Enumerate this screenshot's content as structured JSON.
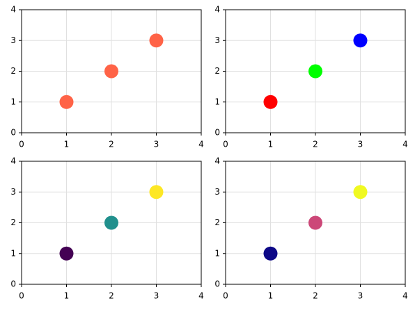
{
  "chart_data": [
    {
      "type": "scatter",
      "x": [
        1,
        2,
        3
      ],
      "values": [
        1,
        2,
        3
      ],
      "colors": [
        "#ff6347",
        "#ff6347",
        "#ff6347"
      ],
      "xlim": [
        0,
        4
      ],
      "ylim": [
        0,
        4
      ],
      "xticks": [
        0,
        1,
        2,
        3,
        4
      ],
      "yticks": [
        0,
        1,
        2,
        3,
        4
      ],
      "grid": true
    },
    {
      "type": "scatter",
      "x": [
        1,
        2,
        3
      ],
      "values": [
        1,
        2,
        3
      ],
      "colors": [
        "#ff0000",
        "#00ff00",
        "#0000ff"
      ],
      "xlim": [
        0,
        4
      ],
      "ylim": [
        0,
        4
      ],
      "xticks": [
        0,
        1,
        2,
        3,
        4
      ],
      "yticks": [
        0,
        1,
        2,
        3,
        4
      ],
      "grid": true
    },
    {
      "type": "scatter",
      "x": [
        1,
        2,
        3
      ],
      "values": [
        1,
        2,
        3
      ],
      "colors": [
        "#440154",
        "#21908d",
        "#fde725"
      ],
      "xlim": [
        0,
        4
      ],
      "ylim": [
        0,
        4
      ],
      "xticks": [
        0,
        1,
        2,
        3,
        4
      ],
      "yticks": [
        0,
        1,
        2,
        3,
        4
      ],
      "grid": true
    },
    {
      "type": "scatter",
      "x": [
        1,
        2,
        3
      ],
      "values": [
        1,
        2,
        3
      ],
      "colors": [
        "#0d0887",
        "#cc4778",
        "#f0f921"
      ],
      "xlim": [
        0,
        4
      ],
      "ylim": [
        0,
        4
      ],
      "xticks": [
        0,
        1,
        2,
        3,
        4
      ],
      "yticks": [
        0,
        1,
        2,
        3,
        4
      ],
      "grid": true
    }
  ]
}
